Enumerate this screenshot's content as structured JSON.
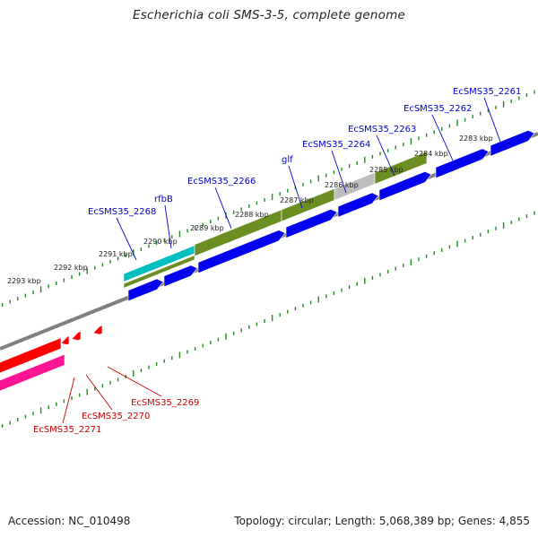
{
  "title": "Escherichia coli SMS-3-5, complete genome",
  "footer": {
    "accession": "Accession: NC_010498",
    "summary": "Topology: circular; Length: 5,068,389 bp; Genes: 4,855"
  },
  "colors": {
    "cds": "#0000ee",
    "gene_forward": "#6b8e23",
    "gene_highlight": "#00bfbf",
    "gene_pseudo": "#bdbdbd",
    "gene_reverse": "#ff0000",
    "gene_reverse_alt": "#ff1493",
    "tick": "#228b22",
    "backbone": "#808080",
    "label_forward": "#0000cc",
    "label_reverse": "#cc0000"
  },
  "kbp_labels": [
    "2293 kbp",
    "2292 kbp",
    "2291 kbp",
    "2290 kbp",
    "2289 kbp",
    "2288 kbp",
    "2287 kbp",
    "2286 kbp",
    "2285 kbp",
    "2284 kbp",
    "2283 kbp"
  ],
  "forward_gene_labels": [
    "EcSMS35_2268",
    "rfbB",
    "EcSMS35_2266",
    "glf",
    "EcSMS35_2264",
    "EcSMS35_2263",
    "EcSMS35_2262",
    "EcSMS35_2261"
  ],
  "reverse_gene_labels": [
    "EcSMS35_2269",
    "EcSMS35_2270",
    "EcSMS35_2271"
  ]
}
